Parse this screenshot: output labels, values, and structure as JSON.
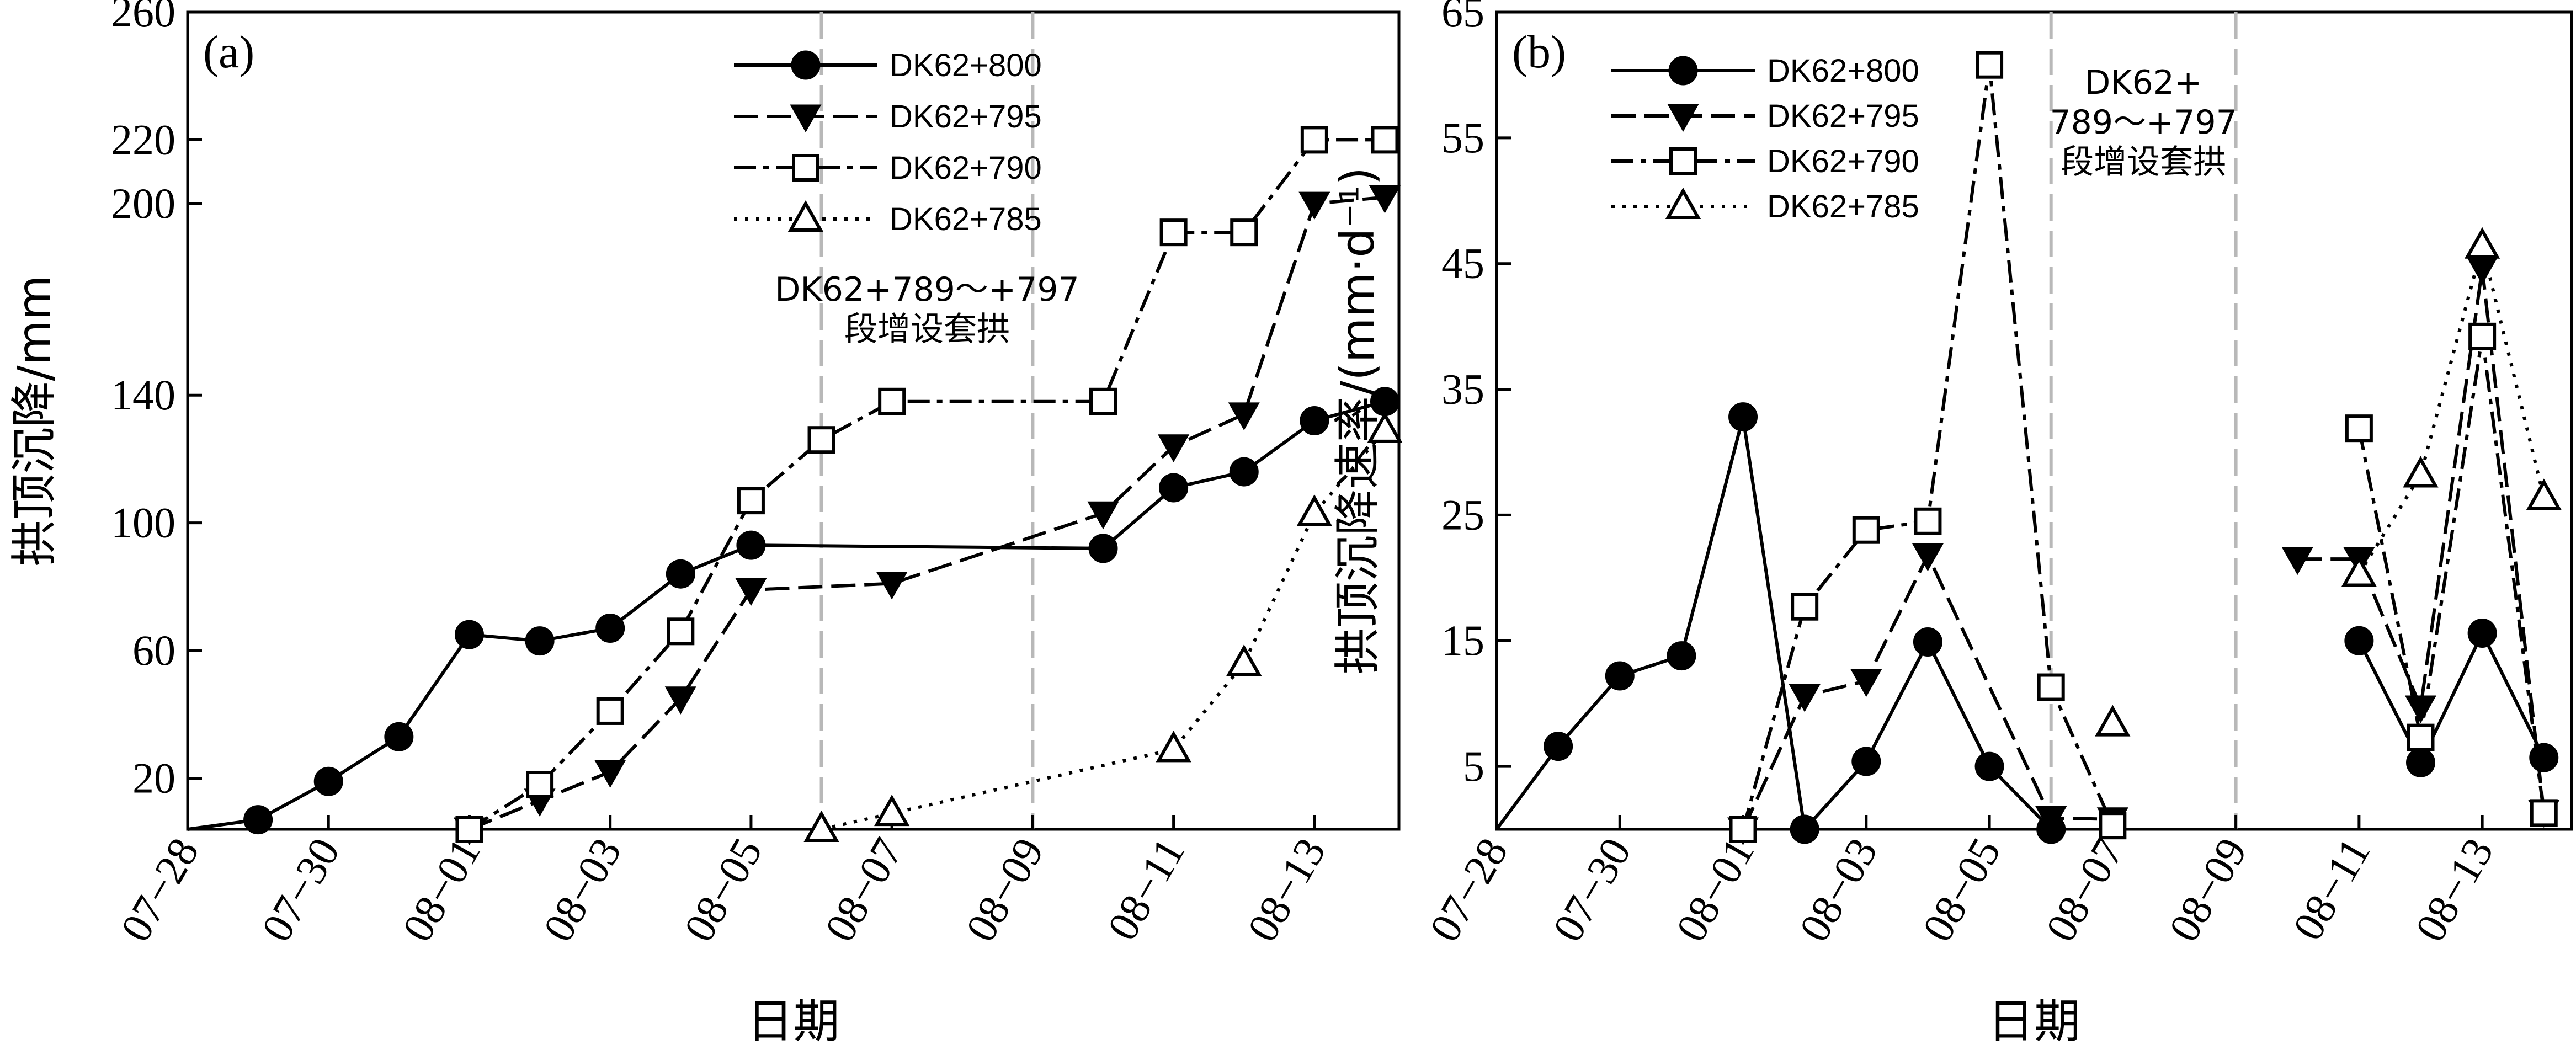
{
  "chart_data": [
    {
      "type": "line",
      "panel_label": "(a)",
      "xlabel": "日期",
      "ylabel": "拱顶沉降/mm",
      "ylim": [
        4,
        260
      ],
      "yticks": [
        20,
        60,
        100,
        140,
        200,
        220,
        260
      ],
      "x_ticks": [
        "07−28",
        "07−30",
        "08−01",
        "08−03",
        "08−05",
        "08−07",
        "08−09",
        "08−11",
        "08−13"
      ],
      "annotation": {
        "lines": [
          "DK62+789～+797",
          "段增设套拱"
        ],
        "x_range": [
          "08-06",
          "08-09"
        ]
      },
      "legend_position": "top-right",
      "series": [
        {
          "name": "DK62+800",
          "marker": "circle",
          "x": [
            "07-28",
            "07-29",
            "07-30",
            "07-31",
            "08-01",
            "08-02",
            "08-03",
            "08-04",
            "08-05",
            "08-10",
            "08-11",
            "08-12",
            "08-13",
            "08-14"
          ],
          "y": [
            4,
            7,
            19,
            33,
            65,
            63,
            67,
            84,
            93,
            92,
            111,
            116,
            132,
            138
          ]
        },
        {
          "name": "DK62+795",
          "marker": "triangle-down",
          "x": [
            "08-01",
            "08-02",
            "08-03",
            "08-04",
            "08-05",
            "08-07",
            "08-10",
            "08-11",
            "08-12",
            "08-13",
            "08-14"
          ],
          "y": [
            4,
            13,
            22,
            45,
            79,
            81,
            103,
            124,
            134,
            200,
            202
          ]
        },
        {
          "name": "DK62+790",
          "marker": "square-open",
          "x": [
            "08-01",
            "08-02",
            "08-03",
            "08-04",
            "08-05",
            "08-06",
            "08-07",
            "08-10",
            "08-11",
            "08-12",
            "08-13",
            "08-14"
          ],
          "y": [
            4,
            18,
            41,
            66,
            107,
            126,
            138,
            138,
            191,
            191,
            220,
            220
          ]
        },
        {
          "name": "DK62+785",
          "marker": "triangle-open",
          "x": [
            "08-06",
            "08-07",
            "08-11",
            "08-12",
            "08-13",
            "08-14"
          ],
          "y": [
            4,
            9,
            29,
            56,
            103,
            129
          ]
        }
      ]
    },
    {
      "type": "line",
      "panel_label": "(b)",
      "xlabel": "日期",
      "ylabel": "拱顶沉降速率/(mm·d⁻¹)",
      "ylim": [
        0,
        65
      ],
      "yticks": [
        5,
        15,
        25,
        35,
        45,
        55,
        65
      ],
      "x_ticks": [
        "07−28",
        "07−30",
        "08−01",
        "08−03",
        "08−05",
        "08−07",
        "08−09",
        "08−11",
        "08−13"
      ],
      "annotation": {
        "lines": [
          "DK62+",
          "789～+797",
          "段增设套拱"
        ],
        "x_range": [
          "08-06",
          "08-09"
        ]
      },
      "legend_position": "top-left",
      "series": [
        {
          "name": "DK62+800",
          "marker": "circle",
          "segments": [
            {
              "x": [
                "07-28",
                "07-29",
                "07-30",
                "07-31",
                "08-01",
                "08-02",
                "08-03",
                "08-04",
                "08-05",
                "08-06"
              ],
              "y": [
                0,
                6.6,
                12.2,
                13.8,
                32.8,
                0,
                5.4,
                14.9,
                5.0,
                0
              ]
            },
            {
              "x": [
                "08-11",
                "08-12",
                "08-13",
                "08-14"
              ],
              "y": [
                15.0,
                5.3,
                15.6,
                5.7
              ]
            }
          ]
        },
        {
          "name": "DK62+795",
          "marker": "triangle-down",
          "segments": [
            {
              "x": [
                "08-01",
                "08-02",
                "08-03",
                "08-04",
                "08-06",
                "08-07"
              ],
              "y": [
                0,
                10.6,
                11.8,
                21.8,
                0.9,
                0.8
              ]
            },
            {
              "x": [
                "08-10",
                "08-11",
                "08-12",
                "08-13",
                "08-14"
              ],
              "y": [
                21.5,
                21.5,
                9.7,
                44.6,
                1.4
              ]
            }
          ]
        },
        {
          "name": "DK62+790",
          "marker": "square-open",
          "segments": [
            {
              "x": [
                "08-01",
                "08-02",
                "08-03",
                "08-04",
                "08-05",
                "08-06",
                "08-07"
              ],
              "y": [
                0,
                17.7,
                23.8,
                24.5,
                60.8,
                11.3,
                0.3
              ]
            },
            {
              "x": [
                "08-11",
                "08-12",
                "08-13",
                "08-14"
              ],
              "y": [
                31.9,
                7.3,
                39.2,
                1.3
              ]
            }
          ]
        },
        {
          "name": "DK62+785",
          "marker": "triangle-open",
          "segments": [
            {
              "x": [
                "08-07"
              ],
              "y": [
                8.4
              ]
            },
            {
              "x": [
                "08-11",
                "08-12",
                "08-13",
                "08-14"
              ],
              "y": [
                20.3,
                28.2,
                46.4,
                26.4
              ]
            }
          ]
        }
      ]
    }
  ]
}
